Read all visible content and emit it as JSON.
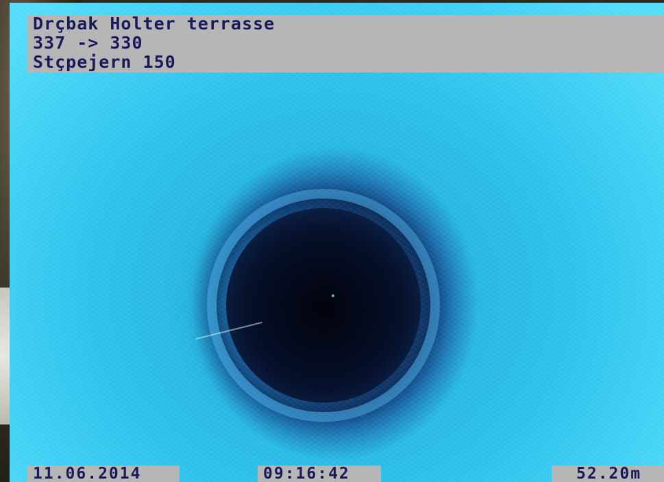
{
  "overlay": {
    "line_1": "Drçbak Holter terrasse",
    "line_2": "337 -> 330",
    "line_3": "Stçpejern 150"
  },
  "footer": {
    "date": "11.06.2014",
    "time": "09:16:42",
    "distance": "52.20m"
  },
  "colors": {
    "overlay_background": "#b6b6b6",
    "overlay_text": "#1a1a5a",
    "pipe_liner": "#2cc0ea",
    "pipe_void": "#05081a"
  }
}
